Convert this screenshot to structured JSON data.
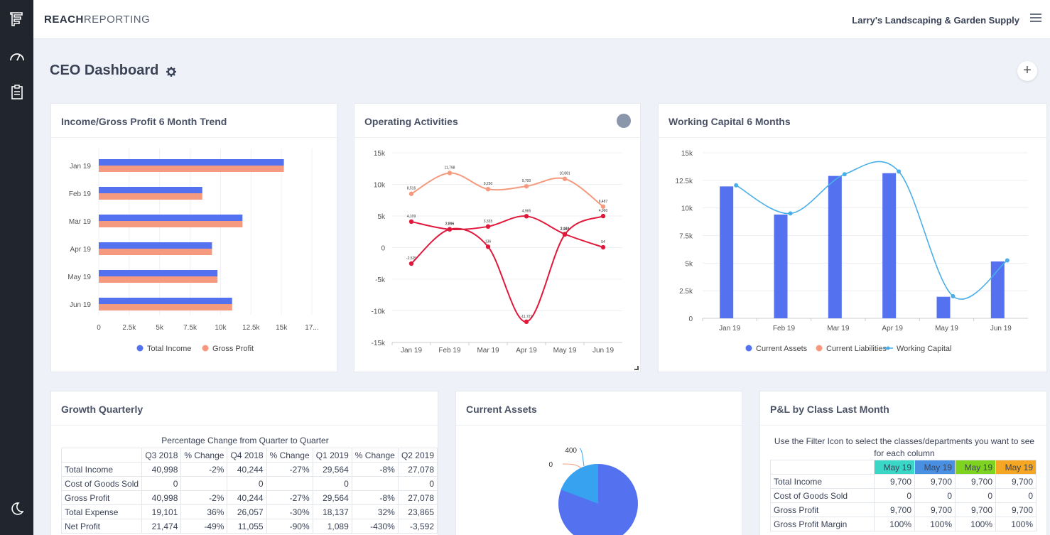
{
  "brand": {
    "bold": "REACH",
    "light": "REPORTING"
  },
  "company": "Larry's Landscaping & Garden Supply",
  "page_title": "CEO Dashboard",
  "icons": {
    "sidebar": [
      "reports-icon",
      "dashboard-gauge-icon",
      "clipboard-icon",
      "night-mode-icon"
    ],
    "header": [
      "menu-icon",
      "gear-icon",
      "add-icon"
    ]
  },
  "colors": {
    "blue": "#5472f0",
    "salmon": "#f59a7e",
    "red": "#e0193c",
    "sky": "#4aaee8",
    "pie_blue": "#5472f0",
    "pie_light": "#36a2f0",
    "class_may1": "#3ad6c6",
    "class_may2": "#4a90e2",
    "class_may3": "#7ed321",
    "class_may4": "#f5a623"
  },
  "cards": {
    "income": {
      "title": "Income/Gross Profit 6 Month Trend"
    },
    "operating": {
      "title": "Operating Activities"
    },
    "working": {
      "title": "Working Capital 6 Months"
    },
    "growth": {
      "title": "Growth Quarterly"
    },
    "assets": {
      "title": "Current Assets"
    },
    "pl": {
      "title": "P&L by Class Last Month"
    }
  },
  "chart_data": [
    {
      "type": "bar",
      "orientation": "horizontal",
      "title": "Income/Gross Profit 6 Month Trend",
      "categories": [
        "Jan 19",
        "Feb 19",
        "Mar 19",
        "Apr 19",
        "May 19",
        "Jun 19"
      ],
      "series": [
        {
          "name": "Total Income",
          "values": [
            15200,
            8500,
            11800,
            9300,
            9750,
            10950
          ]
        },
        {
          "name": "Gross Profit",
          "values": [
            15200,
            8500,
            11800,
            9300,
            9750,
            10950
          ]
        }
      ],
      "xticks": [
        "0",
        "2.5k",
        "5k",
        "7.5k",
        "10k",
        "12.5k",
        "15k",
        "17..."
      ],
      "xlim": [
        0,
        17500
      ],
      "legend": "bottom"
    },
    {
      "type": "line",
      "title": "Operating Activities",
      "categories": [
        "Jan 19",
        "Feb 19",
        "Mar 19",
        "Apr 19",
        "May 19",
        "Jun 19"
      ],
      "series": [
        {
          "values": [
            8516,
            11798,
            9250,
            9700,
            10881,
            6487
          ],
          "labels": [
            "8,516",
            "11,798",
            "9,250",
            "9,700",
            "10,881",
            "6,487"
          ]
        },
        {
          "values": [
            4109,
            2896,
            3335,
            4965,
            2136,
            54
          ],
          "labels": [
            "4,109",
            "2,896",
            "3,335",
            "4,965",
            "2,136",
            "54"
          ]
        },
        {
          "values": [
            -2525,
            2896,
            136,
            -11721,
            2067,
            4990
          ],
          "labels": [
            "-2,525",
            "2,896",
            "136",
            "-11,721",
            "2,067",
            "4,990"
          ]
        }
      ],
      "yticks": [
        "15k",
        "10k",
        "5k",
        "0",
        "-5k",
        "-10k",
        "-15k"
      ],
      "ylim": [
        -15000,
        15000
      ]
    },
    {
      "type": "bar",
      "title": "Working Capital 6 Months",
      "categories": [
        "Jan 19",
        "Feb 19",
        "Mar 19",
        "Apr 19",
        "May 19",
        "Jun 19"
      ],
      "series": [
        {
          "name": "Current Assets",
          "values": [
            11950,
            9400,
            12900,
            13150,
            1950,
            5150
          ]
        },
        {
          "name": "Current Liabilities",
          "values": [
            0,
            0,
            0,
            0,
            0,
            0
          ]
        },
        {
          "name": "Working Capital",
          "type": "line",
          "values": [
            12050,
            9500,
            13050,
            13300,
            2000,
            5250
          ]
        }
      ],
      "yticks": [
        "15k",
        "12.5k",
        "10k",
        "7.5k",
        "5k",
        "2.5k",
        "0"
      ],
      "ylim": [
        0,
        15000
      ],
      "legend": "bottom"
    },
    {
      "type": "pie",
      "title": "Current Assets",
      "labels": [
        "400",
        "0"
      ],
      "values": [
        400,
        0
      ]
    }
  ],
  "growth": {
    "caption": "Percentage Change from Quarter to Quarter",
    "headers": [
      "",
      "Q3 2018",
      "% Change",
      "Q4 2018",
      "% Change",
      "Q1 2019",
      "% Change",
      "Q2 2019"
    ],
    "rows": [
      [
        "Total Income",
        "40,998",
        "-2%",
        "40,244",
        "-27%",
        "29,564",
        "-8%",
        "27,078"
      ],
      [
        "Cost of Goods Sold",
        "0",
        "",
        "0",
        "",
        "0",
        "",
        "0"
      ],
      [
        "Gross Profit",
        "40,998",
        "-2%",
        "40,244",
        "-27%",
        "29,564",
        "-8%",
        "27,078"
      ],
      [
        "Total Expense",
        "19,101",
        "36%",
        "26,057",
        "-30%",
        "18,137",
        "32%",
        "23,865"
      ],
      [
        "Net Profit",
        "21,474",
        "-49%",
        "11,055",
        "-90%",
        "1,089",
        "-430%",
        "-3,592"
      ]
    ]
  },
  "pl": {
    "note": "Use the Filter Icon to select the classes/departments you want to see for each column",
    "headers": [
      "",
      "May 19",
      "May 19",
      "May 19",
      "May 19"
    ],
    "rows": [
      [
        "Total Income",
        "9,700",
        "9,700",
        "9,700",
        "9,700"
      ],
      [
        "Cost of Goods Sold",
        "0",
        "0",
        "0",
        "0"
      ],
      [
        "Gross Profit",
        "9,700",
        "9,700",
        "9,700",
        "9,700"
      ],
      [
        "Gross Profit Margin",
        "100%",
        "100%",
        "100%",
        "100%"
      ]
    ]
  }
}
